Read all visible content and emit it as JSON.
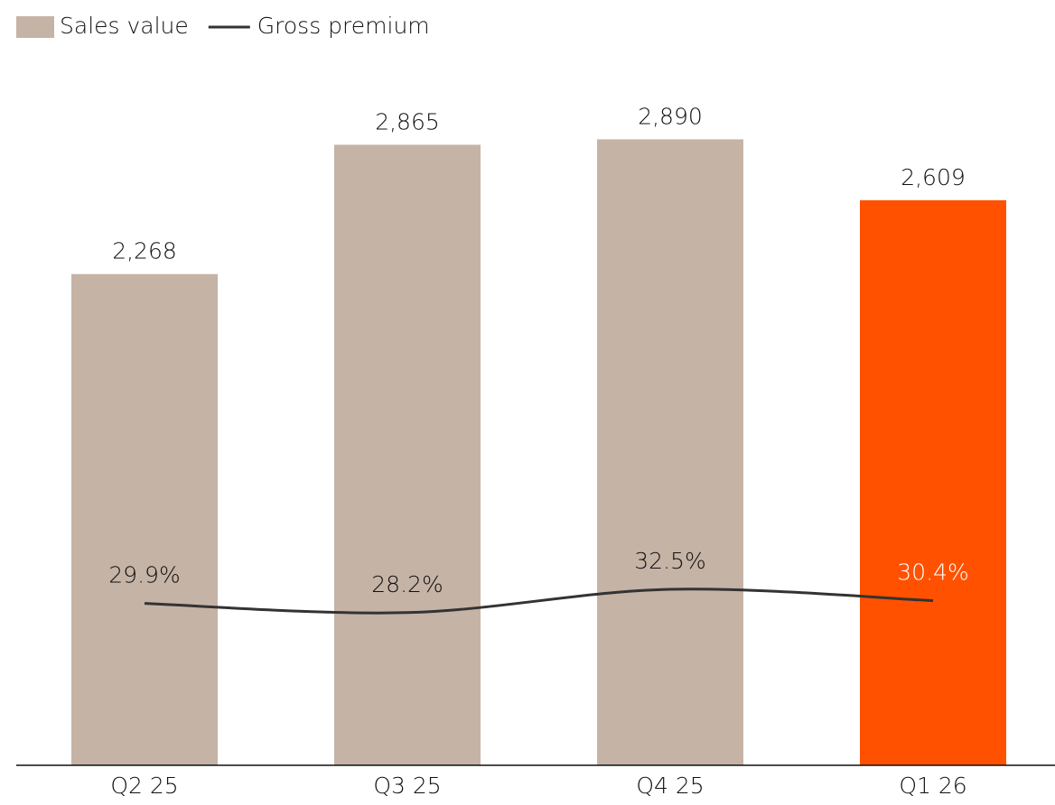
{
  "chart_data": {
    "type": "bar-line",
    "categories": [
      "Q2 25",
      "Q3 25",
      "Q4 25",
      "Q1 26"
    ],
    "ylim": [
      0,
      3000
    ],
    "y2lim": [
      0,
      120
    ],
    "series": [
      {
        "name": "Sales value",
        "type": "bar",
        "color": "#c5b3a6",
        "colors": [
          "#c5b3a6",
          "#c5b3a6",
          "#c5b3a6",
          "#ff5100"
        ],
        "values": [
          2268,
          2865,
          2890,
          2609
        ],
        "value_labels": [
          "2,268",
          "2,865",
          "2,890",
          "2,609"
        ]
      },
      {
        "name": "Gross premium",
        "type": "line",
        "axis": "y2",
        "color": "#333333",
        "values": [
          29.9,
          28.2,
          32.5,
          30.4
        ],
        "value_labels": [
          "29.9%",
          "28.2%",
          "32.5%",
          "30.4%"
        ]
      }
    ]
  }
}
